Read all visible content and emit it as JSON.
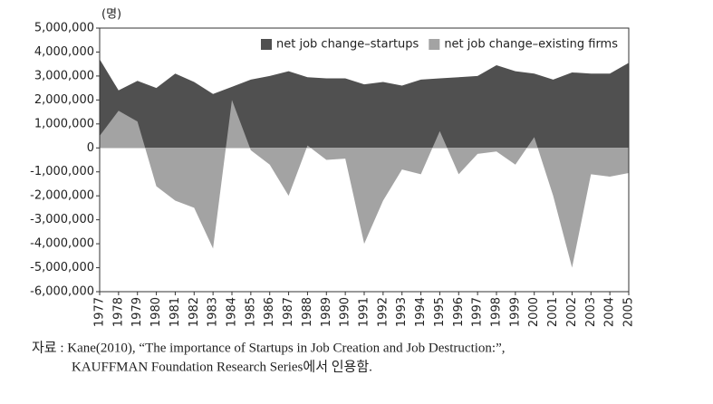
{
  "chart_data": {
    "type": "area",
    "y_unit": "(명)",
    "x": [
      1977,
      1978,
      1979,
      1980,
      1981,
      1982,
      1983,
      1984,
      1985,
      1986,
      1987,
      1988,
      1989,
      1990,
      1991,
      1992,
      1993,
      1994,
      1995,
      1996,
      1997,
      1998,
      1999,
      2000,
      2001,
      2002,
      2003,
      2004,
      2005
    ],
    "xlim": [
      1977,
      2005
    ],
    "series": [
      {
        "name": "net job change–startups",
        "color": "#505050",
        "values": [
          3700000,
          2400000,
          2800000,
          2500000,
          3100000,
          2750000,
          2250000,
          2550000,
          2850000,
          3000000,
          3200000,
          2950000,
          2900000,
          2900000,
          2650000,
          2750000,
          2600000,
          2850000,
          2900000,
          2950000,
          3000000,
          3450000,
          3200000,
          3100000,
          2850000,
          3150000,
          3100000,
          3100000,
          3550000
        ]
      },
      {
        "name": "net job change–existing firms",
        "color": "#a3a3a3",
        "values": [
          500000,
          1550000,
          1100000,
          -1600000,
          -2200000,
          -2500000,
          -4200000,
          2000000,
          -100000,
          -700000,
          -2000000,
          100000,
          -500000,
          -450000,
          -4000000,
          -2200000,
          -900000,
          -1100000,
          700000,
          -1100000,
          -250000,
          -150000,
          -700000,
          450000,
          -2000000,
          -5000000,
          -1100000,
          -1200000,
          -1050000
        ]
      }
    ],
    "ylim": [
      -6000000,
      5000000
    ],
    "yticks": [
      {
        "value": -6000000,
        "label": "-6,000,000"
      },
      {
        "value": -5000000,
        "label": "-5,000,000"
      },
      {
        "value": -4000000,
        "label": "-4,000,000"
      },
      {
        "value": -3000000,
        "label": "-3,000,000"
      },
      {
        "value": -2000000,
        "label": "-2,000,000"
      },
      {
        "value": -1000000,
        "label": "-1,000,000"
      },
      0,
      {
        "value": 1000000,
        "label": "1,000,000"
      },
      {
        "value": 2000000,
        "label": "2,000,000"
      },
      {
        "value": 3000000,
        "label": "3,000,000"
      },
      {
        "value": 4000000,
        "label": "4,000,000"
      },
      {
        "value": 5000000,
        "label": "5,000,000"
      }
    ],
    "legend": "top-right",
    "source": [
      "자료 : Kane(2010), “The importance of Startups in Job Creation and Job Destruction:”,",
      "KAUFFMAN Foundation Research Series에서 인용함."
    ]
  }
}
